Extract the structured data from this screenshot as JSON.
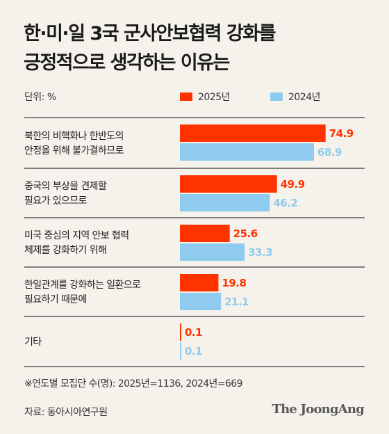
{
  "title_lines": [
    "한·미·일 3국 군사안보협력 강화를",
    "긍정적으로 생각하는 이유는"
  ],
  "unit_label": "단위: %",
  "colors": {
    "y2025": "#ff3300",
    "y2024": "#8fcbef",
    "divider": "#3a3a3a"
  },
  "chart_data": {
    "type": "bar",
    "orientation": "horizontal",
    "title": "한·미·일 3국 군사안보협력 강화를 긍정적으로 생각하는 이유는",
    "categories": [
      [
        "북한의 비핵화나 한반도의",
        "안정을 위해 불가결하므로"
      ],
      [
        "중국의 부상을 견제할",
        "필요가 있으므로"
      ],
      [
        "미국 중심의 지역 안보 협력",
        "체제를 강화하기 위해"
      ],
      [
        "한일관계를 강화하는 일환으로",
        "필요하기 때문에"
      ],
      [
        "기타"
      ]
    ],
    "series": [
      {
        "name": "2025년",
        "values": [
          74.9,
          49.9,
          25.6,
          19.8,
          0.1
        ]
      },
      {
        "name": "2024년",
        "values": [
          68.9,
          46.2,
          33.3,
          21.1,
          0.1
        ]
      }
    ],
    "value_labels": {
      "2025": [
        "74.9",
        "49.9",
        "25.6",
        "19.8",
        "0.1"
      ],
      "2024": [
        "68.9",
        "46.2",
        "33.3",
        "21.1",
        "0.1"
      ]
    },
    "xlim": [
      0,
      100
    ],
    "legend_position": "top"
  },
  "note": "※연도별 모집단 수(명): 2025년=1136, 2024년=669",
  "source": "자료: 동아시아연구원",
  "brand": "The JoongAng"
}
